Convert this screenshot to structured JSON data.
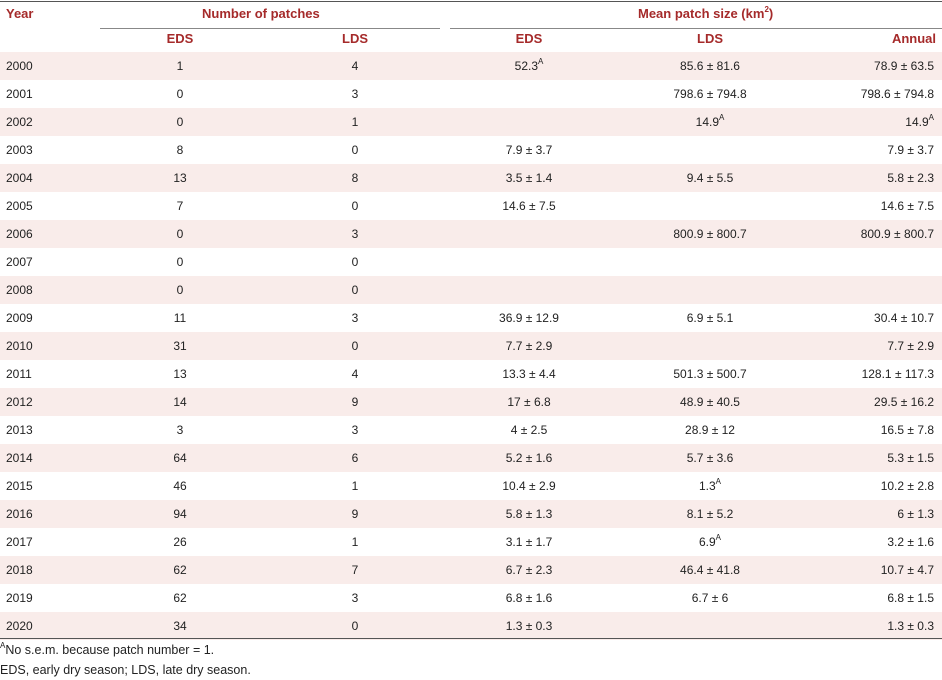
{
  "header": {
    "year": "Year",
    "num_patches": "Number of patches",
    "mean_patch_size": "Mean patch size (km",
    "mean_patch_size_sup": "2",
    "mean_patch_size_close": ")",
    "eds": "EDS",
    "lds": "LDS",
    "m_eds": "EDS",
    "m_lds": "LDS",
    "annual": "Annual"
  },
  "rows": [
    {
      "year": "2000",
      "eds": "1",
      "lds": "4",
      "m_eds": "52.3",
      "m_eds_sup": "A",
      "m_lds": "85.6 ± 81.6",
      "m_lds_sup": "",
      "annual": "78.9 ± 63.5",
      "annual_sup": ""
    },
    {
      "year": "2001",
      "eds": "0",
      "lds": "3",
      "m_eds": "",
      "m_eds_sup": "",
      "m_lds": "798.6 ± 794.8",
      "m_lds_sup": "",
      "annual": "798.6 ± 794.8",
      "annual_sup": ""
    },
    {
      "year": "2002",
      "eds": "0",
      "lds": "1",
      "m_eds": "",
      "m_eds_sup": "",
      "m_lds": "14.9",
      "m_lds_sup": "A",
      "annual": "14.9",
      "annual_sup": "A"
    },
    {
      "year": "2003",
      "eds": "8",
      "lds": "0",
      "m_eds": "7.9 ± 3.7",
      "m_eds_sup": "",
      "m_lds": "",
      "m_lds_sup": "",
      "annual": "7.9 ± 3.7",
      "annual_sup": ""
    },
    {
      "year": "2004",
      "eds": "13",
      "lds": "8",
      "m_eds": "3.5 ± 1.4",
      "m_eds_sup": "",
      "m_lds": "9.4 ± 5.5",
      "m_lds_sup": "",
      "annual": "5.8 ± 2.3",
      "annual_sup": ""
    },
    {
      "year": "2005",
      "eds": "7",
      "lds": "0",
      "m_eds": "14.6 ± 7.5",
      "m_eds_sup": "",
      "m_lds": "",
      "m_lds_sup": "",
      "annual": "14.6 ± 7.5",
      "annual_sup": ""
    },
    {
      "year": "2006",
      "eds": "0",
      "lds": "3",
      "m_eds": "",
      "m_eds_sup": "",
      "m_lds": "800.9 ± 800.7",
      "m_lds_sup": "",
      "annual": "800.9 ± 800.7",
      "annual_sup": ""
    },
    {
      "year": "2007",
      "eds": "0",
      "lds": "0",
      "m_eds": "",
      "m_eds_sup": "",
      "m_lds": "",
      "m_lds_sup": "",
      "annual": "",
      "annual_sup": ""
    },
    {
      "year": "2008",
      "eds": "0",
      "lds": "0",
      "m_eds": "",
      "m_eds_sup": "",
      "m_lds": "",
      "m_lds_sup": "",
      "annual": "",
      "annual_sup": ""
    },
    {
      "year": "2009",
      "eds": "11",
      "lds": "3",
      "m_eds": "36.9 ± 12.9",
      "m_eds_sup": "",
      "m_lds": "6.9 ± 5.1",
      "m_lds_sup": "",
      "annual": "30.4 ± 10.7",
      "annual_sup": ""
    },
    {
      "year": "2010",
      "eds": "31",
      "lds": "0",
      "m_eds": "7.7 ± 2.9",
      "m_eds_sup": "",
      "m_lds": "",
      "m_lds_sup": "",
      "annual": "7.7 ± 2.9",
      "annual_sup": ""
    },
    {
      "year": "2011",
      "eds": "13",
      "lds": "4",
      "m_eds": "13.3 ± 4.4",
      "m_eds_sup": "",
      "m_lds": "501.3 ± 500.7",
      "m_lds_sup": "",
      "annual": "128.1 ± 117.3",
      "annual_sup": ""
    },
    {
      "year": "2012",
      "eds": "14",
      "lds": "9",
      "m_eds": "17 ± 6.8",
      "m_eds_sup": "",
      "m_lds": "48.9 ± 40.5",
      "m_lds_sup": "",
      "annual": "29.5 ± 16.2",
      "annual_sup": ""
    },
    {
      "year": "2013",
      "eds": "3",
      "lds": "3",
      "m_eds": "4 ± 2.5",
      "m_eds_sup": "",
      "m_lds": "28.9 ± 12",
      "m_lds_sup": "",
      "annual": "16.5 ± 7.8",
      "annual_sup": ""
    },
    {
      "year": "2014",
      "eds": "64",
      "lds": "6",
      "m_eds": "5.2 ± 1.6",
      "m_eds_sup": "",
      "m_lds": "5.7 ± 3.6",
      "m_lds_sup": "",
      "annual": "5.3 ± 1.5",
      "annual_sup": ""
    },
    {
      "year": "2015",
      "eds": "46",
      "lds": "1",
      "m_eds": "10.4 ± 2.9",
      "m_eds_sup": "",
      "m_lds": "1.3",
      "m_lds_sup": "A",
      "annual": "10.2 ± 2.8",
      "annual_sup": ""
    },
    {
      "year": "2016",
      "eds": "94",
      "lds": "9",
      "m_eds": "5.8 ± 1.3",
      "m_eds_sup": "",
      "m_lds": "8.1 ± 5.2",
      "m_lds_sup": "",
      "annual": "6 ± 1.3",
      "annual_sup": ""
    },
    {
      "year": "2017",
      "eds": "26",
      "lds": "1",
      "m_eds": "3.1 ± 1.7",
      "m_eds_sup": "",
      "m_lds": "6.9",
      "m_lds_sup": "A",
      "annual": "3.2 ± 1.6",
      "annual_sup": ""
    },
    {
      "year": "2018",
      "eds": "62",
      "lds": "7",
      "m_eds": "6.7 ± 2.3",
      "m_eds_sup": "",
      "m_lds": "46.4 ± 41.8",
      "m_lds_sup": "",
      "annual": "10.7 ± 4.7",
      "annual_sup": ""
    },
    {
      "year": "2019",
      "eds": "62",
      "lds": "3",
      "m_eds": "6.8 ± 1.6",
      "m_eds_sup": "",
      "m_lds": "6.7 ± 6",
      "m_lds_sup": "",
      "annual": "6.8 ± 1.5",
      "annual_sup": ""
    },
    {
      "year": "2020",
      "eds": "34",
      "lds": "0",
      "m_eds": "1.3 ± 0.3",
      "m_eds_sup": "",
      "m_lds": "",
      "m_lds_sup": "",
      "annual": "1.3 ± 0.3",
      "annual_sup": ""
    }
  ],
  "footnotes": {
    "a_sup": "A",
    "a_text": "No s.e.m. because patch number = 1.",
    "abbrev": "EDS, early dry season; LDS, late dry season."
  },
  "colors": {
    "header": "#a52a2a",
    "shade": "#f9ecea"
  }
}
